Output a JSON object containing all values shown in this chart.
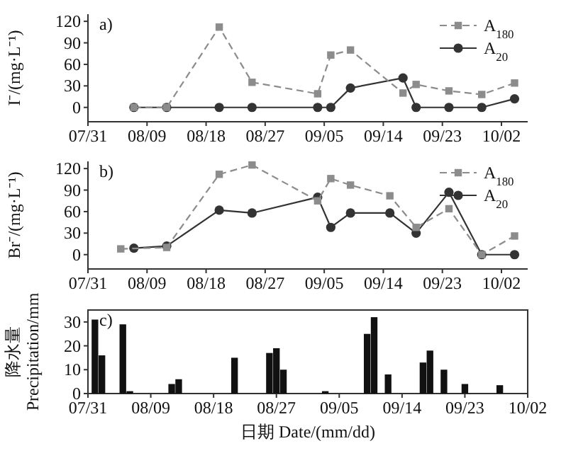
{
  "chart_data": [
    {
      "type": "line",
      "title": "a)",
      "ylabel": "I⁻/(mg·L⁻¹)",
      "legend": "top right",
      "xlim": [
        "--07-31",
        "--10-06"
      ],
      "ylim": [
        -20,
        130
      ],
      "yticks": [
        0,
        30,
        60,
        90,
        120
      ],
      "xticks": [
        {
          "value": "--07-31",
          "label": "07/31"
        },
        {
          "value": "--08-09",
          "label": "08/09"
        },
        {
          "value": "--08-18",
          "label": "08/18"
        },
        {
          "value": "--08-27",
          "label": "08/27"
        },
        {
          "value": "--09-05",
          "label": "09/05"
        },
        {
          "value": "--09-14",
          "label": "09/14"
        },
        {
          "value": "--09-23",
          "label": "09/23"
        },
        {
          "value": "--10-02",
          "label": "10/02"
        }
      ],
      "x": [
        "--08-07",
        "--08-12",
        "--08-20",
        "--08-25",
        "--09-04",
        "--09-06",
        "--09-09",
        "--09-17",
        "--09-19",
        "--09-24",
        "--09-29",
        "--10-04"
      ],
      "series": [
        {
          "name": "A$_{180}$",
          "color": "#8c8c8c",
          "marker": "square",
          "line_style": "dashed",
          "values": [
            0,
            0,
            112,
            35,
            19,
            73,
            80,
            20,
            32,
            23,
            18,
            34
          ]
        },
        {
          "name": "A$_{20}$",
          "color": "#333333",
          "marker": "circle",
          "line_style": "solid",
          "values": [
            0,
            0,
            0,
            0,
            0,
            0,
            27,
            41,
            0,
            0,
            0,
            12
          ]
        }
      ]
    },
    {
      "type": "line",
      "title": "b)",
      "ylabel": "Br⁻/(mg·L⁻¹)",
      "legend": "top right",
      "xlim": [
        "--07-31",
        "--10-06"
      ],
      "ylim": [
        -20,
        130
      ],
      "yticks": [
        0,
        30,
        60,
        90,
        120
      ],
      "xticks": [
        {
          "value": "--07-31",
          "label": "07/31"
        },
        {
          "value": "--08-09",
          "label": "08/09"
        },
        {
          "value": "--08-18",
          "label": "08/18"
        },
        {
          "value": "--08-27",
          "label": "08/27"
        },
        {
          "value": "--09-05",
          "label": "09/05"
        },
        {
          "value": "--09-14",
          "label": "09/14"
        },
        {
          "value": "--09-23",
          "label": "09/23"
        },
        {
          "value": "--10-02",
          "label": "10/02"
        }
      ],
      "x": [
        "--08-07",
        "--08-12",
        "--08-20",
        "--08-25",
        "--09-04",
        "--09-06",
        "--09-09",
        "--09-15",
        "--09-19",
        "--09-24",
        "--09-29",
        "--10-04"
      ],
      "series": [
        {
          "name": "A$_{180}$",
          "color": "#8c8c8c",
          "marker": "square",
          "line_style": "dashed",
          "x": [
            "--08-05",
            "--08-12",
            "--08-20",
            "--08-25",
            "--09-04",
            "--09-06",
            "--09-09",
            "--09-15",
            "--09-19",
            "--09-24",
            "--09-29",
            "--10-04"
          ],
          "values": [
            8,
            10,
            112,
            125,
            75,
            106,
            97,
            82,
            38,
            64,
            0,
            26
          ]
        },
        {
          "name": "A$_{20}$",
          "color": "#333333",
          "marker": "circle",
          "line_style": "solid",
          "values": [
            9,
            12,
            62,
            58,
            80,
            38,
            58,
            58,
            30,
            87,
            0,
            0
          ]
        }
      ]
    },
    {
      "type": "bar",
      "title": "c)",
      "ylabel": "降水量\nPrecipitation/mm",
      "xlabel": "日期 Date/(mm/dd)",
      "xlim": [
        "--07-31",
        "--10-02"
      ],
      "ylim": [
        0,
        35
      ],
      "yticks": [
        0,
        10,
        20,
        30
      ],
      "xticks": [
        {
          "value": "--07-31",
          "label": "07/31"
        },
        {
          "value": "--08-09",
          "label": "08/09"
        },
        {
          "value": "--08-18",
          "label": "08/18"
        },
        {
          "value": "--08-27",
          "label": "08/27"
        },
        {
          "value": "--09-05",
          "label": "09/05"
        },
        {
          "value": "--09-14",
          "label": "09/14"
        },
        {
          "value": "--09-23",
          "label": "09/23"
        },
        {
          "value": "--10-02",
          "label": "10/02"
        }
      ],
      "x": [
        "--08-01",
        "--08-02",
        "--08-05",
        "--08-06",
        "--08-12",
        "--08-13",
        "--08-21",
        "--08-26",
        "--08-27",
        "--08-28",
        "--09-03",
        "--09-09",
        "--09-10",
        "--09-12",
        "--09-17",
        "--09-18",
        "--09-20",
        "--09-23",
        "--09-28"
      ],
      "color": "#111111",
      "values": [
        31,
        16,
        29,
        1,
        4,
        6,
        15,
        17,
        19,
        10,
        1,
        25,
        32,
        8,
        13,
        18,
        10,
        4,
        3.5
      ]
    }
  ]
}
